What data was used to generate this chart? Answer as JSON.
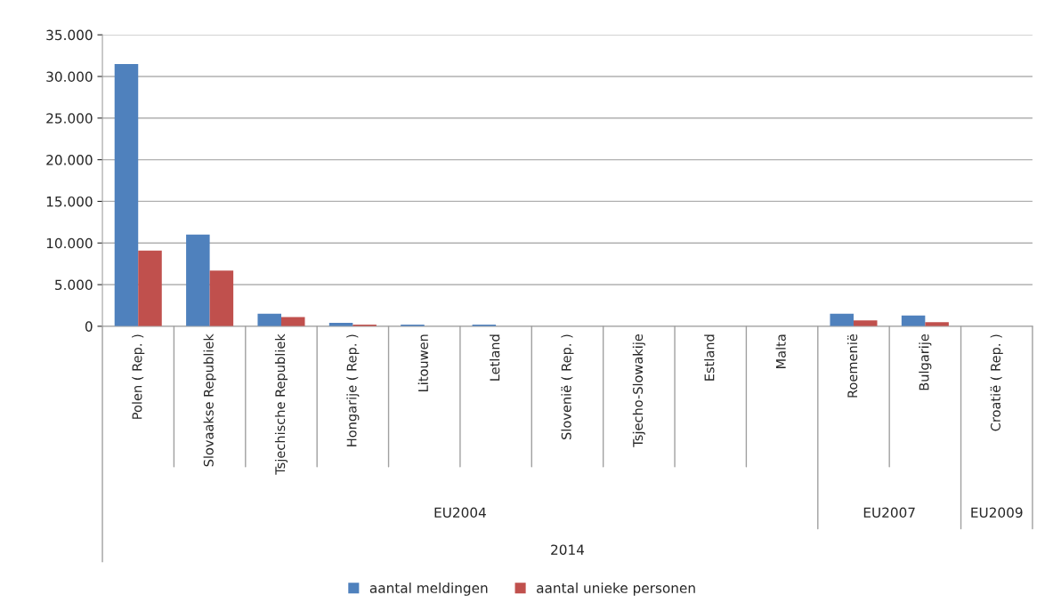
{
  "chart_data": {
    "type": "bar",
    "categories": [
      "Polen ( Rep. )",
      "Slovaakse Republiek",
      "Tsjechische Republiek",
      "Hongarije ( Rep. )",
      "Litouwen",
      "Letland",
      "Slovenië ( Rep. )",
      "Tsjecho-Slowakije",
      "Estland",
      "Malta",
      "Roemenië",
      "Bulgarije",
      "Croatië ( Rep. )"
    ],
    "series": [
      {
        "name": "aantal meldingen",
        "color": "#4f81bd",
        "values": [
          31500,
          11000,
          1500,
          400,
          200,
          200,
          null,
          null,
          null,
          null,
          1500,
          1300,
          null
        ]
      },
      {
        "name": "aantal unieke personen",
        "color": "#c0504d",
        "values": [
          9100,
          6700,
          1100,
          200,
          null,
          null,
          null,
          null,
          null,
          null,
          700,
          500,
          null
        ]
      }
    ],
    "annotations": [
      "EU2004",
      "EU2007",
      "EU2009",
      "2014"
    ],
    "ylim": [
      0,
      35000
    ],
    "yticks": [
      0,
      {
        "value": 5000,
        "label": "5.000"
      },
      {
        "value": 10000,
        "label": "10.000"
      },
      {
        "value": 15000,
        "label": "15.000"
      },
      {
        "value": 20000,
        "label": "20.000"
      },
      {
        "value": 25000,
        "label": "25.000"
      },
      {
        "value": 30000,
        "label": "30.000"
      },
      {
        "value": 35000,
        "label": "35.000"
      }
    ],
    "grid": "y",
    "legend": "bottom"
  }
}
